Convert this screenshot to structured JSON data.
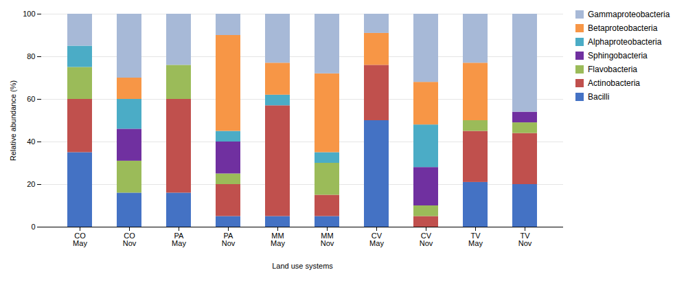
{
  "chart_data": {
    "type": "bar",
    "stacked": true,
    "categories": [
      "CO\nMay",
      "CO\nNov",
      "PA\nMay",
      "PA\nNov",
      "MM\nMay",
      "MM\nNov",
      "CV\nMay",
      "CV\nNov",
      "TV\nMay",
      "TV\nNov"
    ],
    "series": [
      {
        "name": "Bacilli",
        "color": "#4472C4",
        "values": [
          35,
          16,
          16,
          5,
          5,
          5,
          50,
          0,
          21,
          20
        ]
      },
      {
        "name": "Actinobacteria",
        "color": "#C0504D",
        "values": [
          25,
          0,
          44,
          15,
          52,
          10,
          26,
          5,
          24,
          24
        ]
      },
      {
        "name": "Flavobacteria",
        "color": "#9BBB59",
        "values": [
          15,
          15,
          16,
          5,
          0,
          15,
          0,
          5,
          5,
          5
        ]
      },
      {
        "name": "Sphingobacteria",
        "color": "#7030A0",
        "values": [
          0,
          15,
          0,
          15,
          0,
          0,
          0,
          18,
          0,
          5
        ]
      },
      {
        "name": "Alphaproteobacteria",
        "color": "#4BACC6",
        "values": [
          10,
          14,
          0,
          5,
          5,
          5,
          0,
          20,
          0,
          0
        ]
      },
      {
        "name": "Betaproteobacteria",
        "color": "#F79646",
        "values": [
          0,
          10,
          0,
          45,
          15,
          37,
          15,
          20,
          27,
          0
        ]
      },
      {
        "name": "Gammaproteobacteria",
        "color": "#A7B9D7",
        "values": [
          15,
          30,
          24,
          10,
          23,
          28,
          9,
          32,
          23,
          46
        ]
      }
    ],
    "ylabel": "Relative abundance (%)",
    "xlabel": "Land use systems",
    "ylim": [
      0,
      100
    ],
    "yticks": [
      0,
      20,
      40,
      60,
      80,
      100
    ],
    "grid": true,
    "legend": "right"
  }
}
